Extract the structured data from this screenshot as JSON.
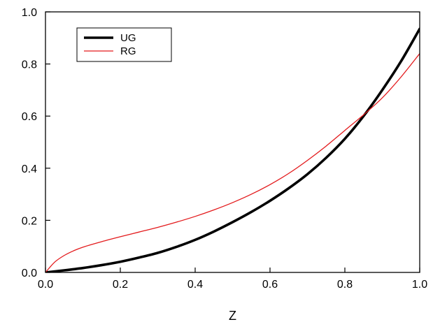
{
  "chart_data": {
    "type": "line",
    "title": "",
    "xlabel": "Z",
    "ylabel": "",
    "xlim": [
      0.0,
      1.0
    ],
    "ylim": [
      0.0,
      1.0
    ],
    "x_ticks": [
      "0.0",
      "0.2",
      "0.4",
      "0.6",
      "0.8",
      "1.0"
    ],
    "y_ticks": [
      "0.0",
      "0.2",
      "0.4",
      "0.6",
      "0.8",
      "1.0"
    ],
    "grid": false,
    "legend_position": "top-left",
    "series": [
      {
        "name": "UG",
        "color": "#000000",
        "style": "thick",
        "x": [
          0.0,
          0.05,
          0.1,
          0.15,
          0.2,
          0.25,
          0.3,
          0.35,
          0.4,
          0.45,
          0.5,
          0.55,
          0.6,
          0.65,
          0.7,
          0.75,
          0.8,
          0.85,
          0.9,
          0.95,
          1.0
        ],
        "y": [
          0.0,
          0.008,
          0.017,
          0.028,
          0.041,
          0.057,
          0.075,
          0.098,
          0.125,
          0.157,
          0.193,
          0.232,
          0.275,
          0.323,
          0.377,
          0.44,
          0.513,
          0.6,
          0.7,
          0.81,
          0.935
        ]
      },
      {
        "name": "RG",
        "color": "#e31a1c",
        "style": "thin",
        "x": [
          0.0,
          0.025,
          0.05,
          0.075,
          0.1,
          0.15,
          0.2,
          0.25,
          0.3,
          0.35,
          0.4,
          0.45,
          0.5,
          0.55,
          0.6,
          0.65,
          0.7,
          0.75,
          0.8,
          0.85,
          0.9,
          0.95,
          1.0
        ],
        "y": [
          0.0,
          0.04,
          0.065,
          0.083,
          0.097,
          0.118,
          0.137,
          0.155,
          0.173,
          0.193,
          0.215,
          0.24,
          0.268,
          0.3,
          0.337,
          0.38,
          0.43,
          0.485,
          0.545,
          0.605,
          0.67,
          0.75,
          0.84
        ]
      }
    ]
  }
}
